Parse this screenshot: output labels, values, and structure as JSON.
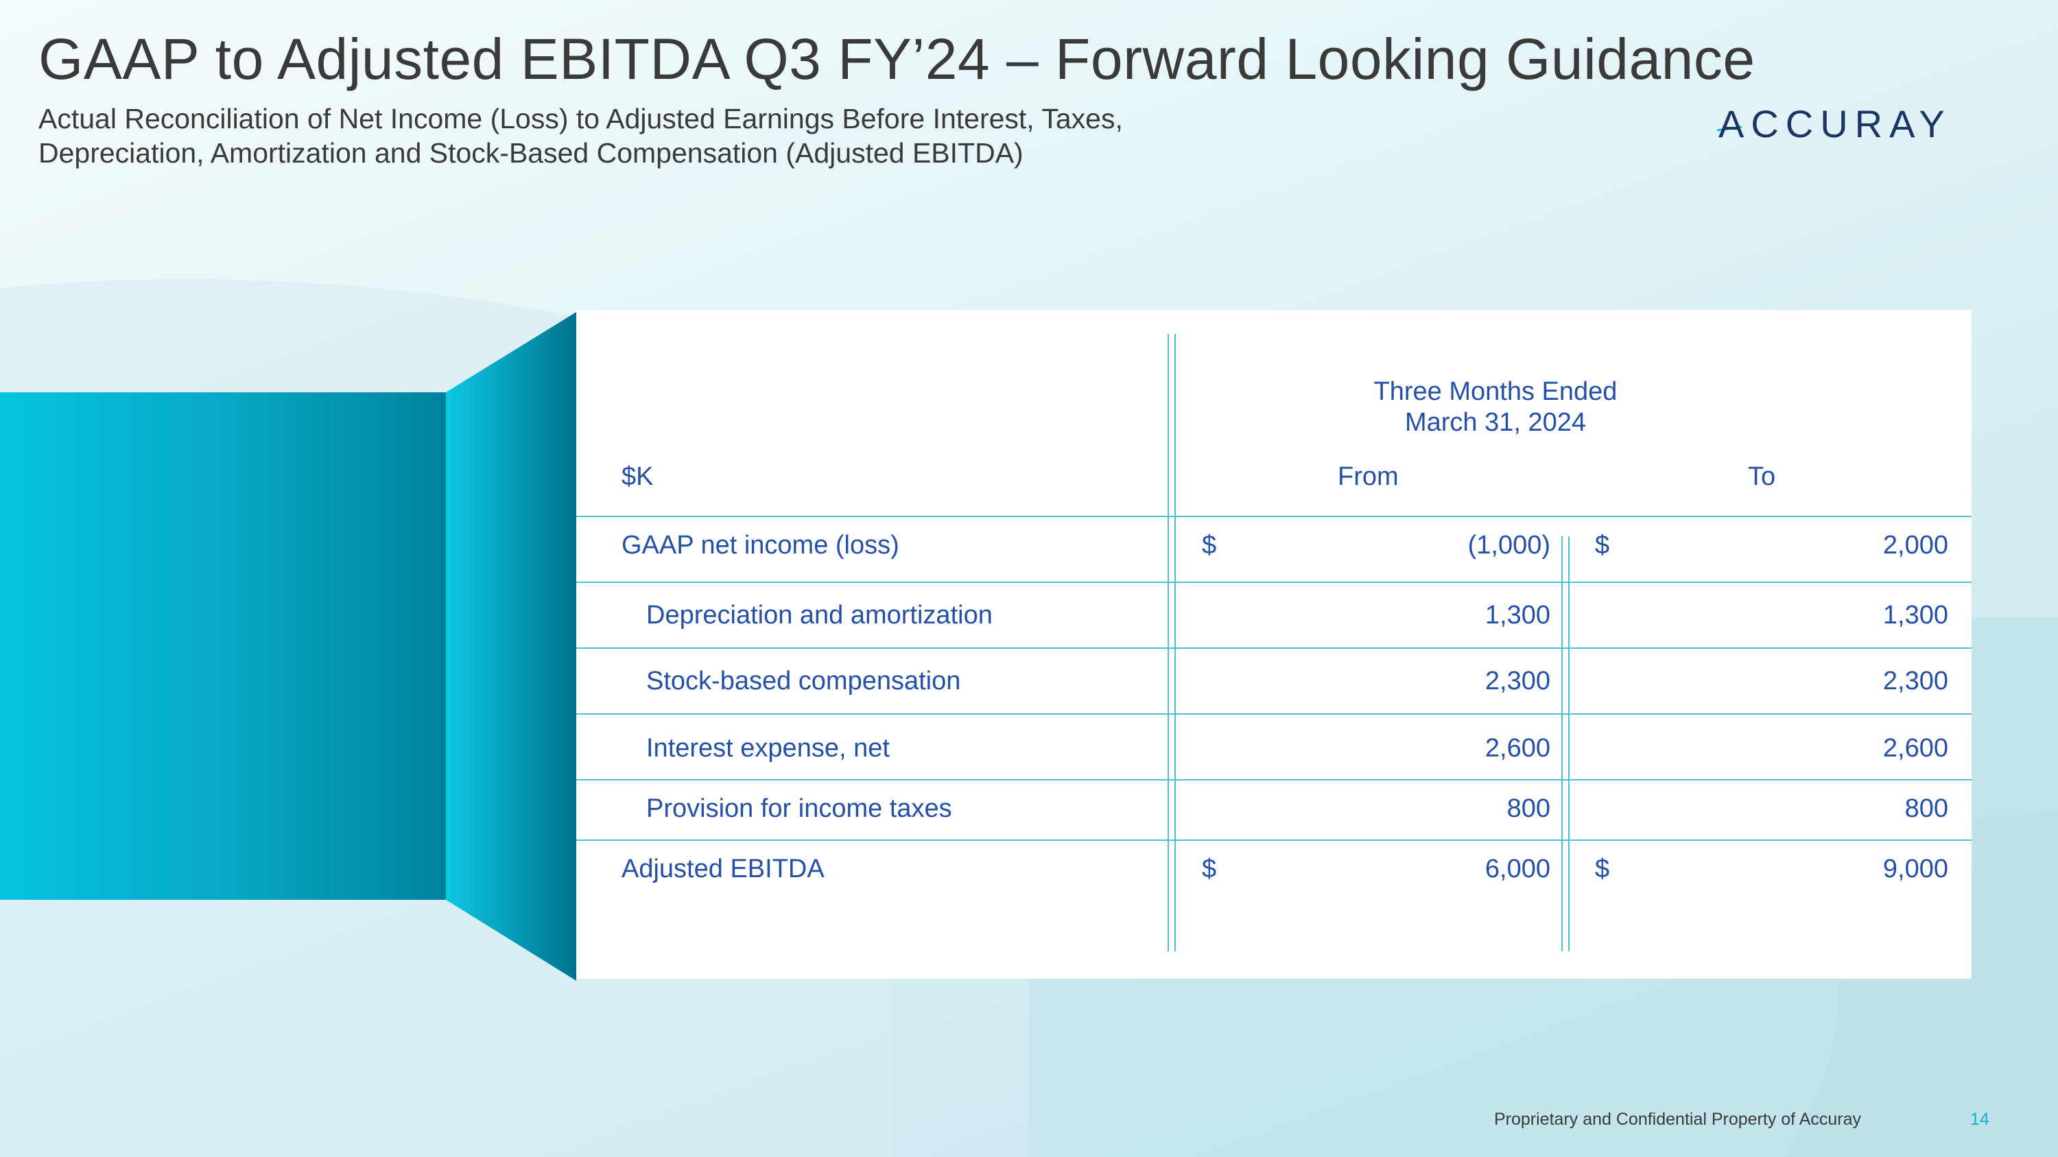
{
  "slide": {
    "title": "GAAP to Adjusted EBITDA Q3 FY’24 – Forward Looking Guidance",
    "subtitle_line1": "Actual Reconciliation of Net Income (Loss) to Adjusted Earnings Before Interest, Taxes,",
    "subtitle_line2": "Depreciation, Amortization and Stock-Based Compensation (Adjusted EBITDA)",
    "logo_text": "ACCURAY",
    "footer_text": "Proprietary and Confidential Property of Accuray",
    "page_number": "14"
  },
  "colors": {
    "text_dark": "#3a3a3a",
    "table_text": "#2450a8",
    "rule": "#49c1d4",
    "accent": "#17b3d3",
    "logo": "#1c3664"
  },
  "table": {
    "period_header_line1": "Three Months Ended",
    "period_header_line2": "March 31, 2024",
    "unit_label": "$K",
    "col_from": "From",
    "col_to": "To",
    "rows": [
      {
        "label": "GAAP net income (loss)",
        "from_currency": "$",
        "from": "(1,000)",
        "to_currency": "$",
        "to": "2,000"
      },
      {
        "label": "Depreciation and amortization",
        "from_currency": "",
        "from": "1,300",
        "to_currency": "",
        "to": "1,300"
      },
      {
        "label": "Stock-based compensation",
        "from_currency": "",
        "from": "2,300",
        "to_currency": "",
        "to": "2,300"
      },
      {
        "label": "Interest expense, net",
        "from_currency": "",
        "from": "2,600",
        "to_currency": "",
        "to": "2,600"
      },
      {
        "label": "Provision for income taxes",
        "from_currency": "",
        "from": "800",
        "to_currency": "",
        "to": "800"
      },
      {
        "label": "Adjusted EBITDA",
        "from_currency": "$",
        "from": "6,000",
        "to_currency": "$",
        "to": "9,000"
      }
    ]
  }
}
